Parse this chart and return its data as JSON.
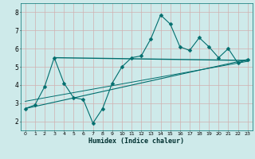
{
  "xlabel": "Humidex (Indice chaleur)",
  "bg_color": "#ceeaea",
  "grid_color": "#b8d8d8",
  "line_color": "#006e6e",
  "axis_bg": "#8ab8b8",
  "xlim": [
    -0.5,
    23.5
  ],
  "ylim": [
    1.5,
    8.5
  ],
  "xticks": [
    0,
    1,
    2,
    3,
    4,
    5,
    6,
    7,
    8,
    9,
    10,
    11,
    12,
    13,
    14,
    15,
    16,
    17,
    18,
    19,
    20,
    21,
    22,
    23
  ],
  "yticks": [
    2,
    3,
    4,
    5,
    6,
    7,
    8
  ],
  "line1_x": [
    0,
    1,
    2,
    3,
    4,
    5,
    6,
    7,
    8,
    9,
    10,
    11,
    12,
    13,
    14,
    15,
    16,
    17,
    18,
    19,
    20,
    21,
    22,
    23
  ],
  "line1_y": [
    2.7,
    2.9,
    3.9,
    5.5,
    4.1,
    3.3,
    3.2,
    1.9,
    2.7,
    4.1,
    5.0,
    5.5,
    5.6,
    6.55,
    7.85,
    7.35,
    6.1,
    5.9,
    6.6,
    6.1,
    5.5,
    6.0,
    5.2,
    5.4
  ],
  "line2_x": [
    3,
    23
  ],
  "line2_y": [
    5.5,
    5.35
  ],
  "line3_x": [
    0,
    23
  ],
  "line3_y": [
    2.7,
    5.4
  ],
  "line4_x": [
    0,
    23
  ],
  "line4_y": [
    3.1,
    5.3
  ],
  "markersize": 2.5
}
